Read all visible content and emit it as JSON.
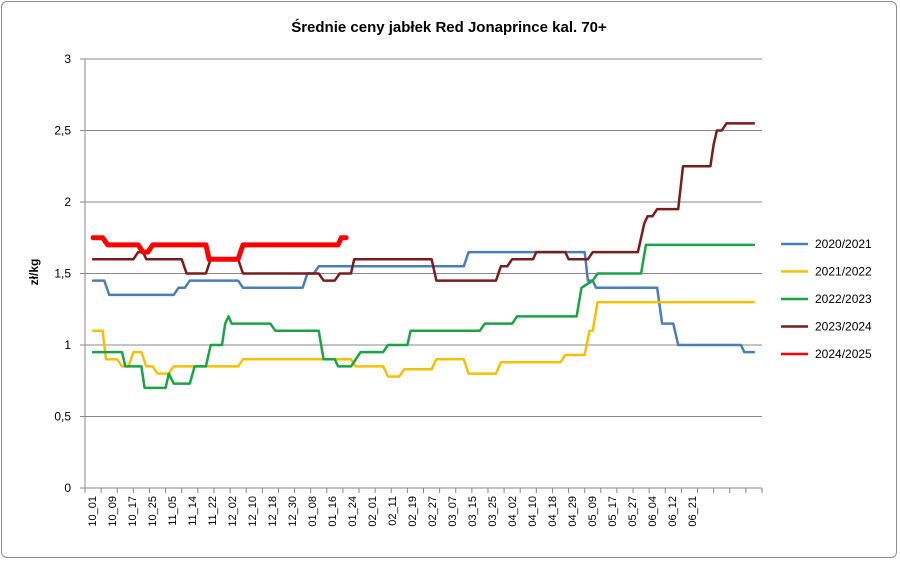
{
  "chart_data": {
    "type": "line",
    "title": "Średnie ceny jabłek Red Jonaprince kal. 70+",
    "xlabel": "",
    "ylabel": "zł/kg",
    "ylim": [
      0,
      3
    ],
    "yticks": [
      "0",
      "0,5",
      "1",
      "1,5",
      "2",
      "2,5",
      "3"
    ],
    "grid": "horizontal",
    "legend_position": "right",
    "x_tick_labels": [
      "10_01",
      "10_09",
      "10_17",
      "10_25",
      "11_05",
      "11_14",
      "11_22",
      "12_02",
      "12_10",
      "12_18",
      "12_30",
      "01_08",
      "01_16",
      "01_24",
      "02_01",
      "02_11",
      "02_19",
      "02_27",
      "03_07",
      "03_15",
      "03_25",
      "04_02",
      "04_10",
      "04_18",
      "04_29",
      "05_09",
      "05_17",
      "05_27",
      "06_04",
      "06_12",
      "06_21"
    ],
    "x_count": 42,
    "series": [
      {
        "name": "2020/2021",
        "color": "#4a7ebb",
        "width": 2.5,
        "points": [
          [
            0,
            1.45
          ],
          [
            0.7,
            1.45
          ],
          [
            1,
            1.35
          ],
          [
            5,
            1.35
          ],
          [
            5.3,
            1.4
          ],
          [
            5.7,
            1.4
          ],
          [
            6,
            1.45
          ],
          [
            9,
            1.45
          ],
          [
            9.3,
            1.4
          ],
          [
            13,
            1.4
          ],
          [
            13.3,
            1.5
          ],
          [
            13.7,
            1.5
          ],
          [
            14,
            1.55
          ],
          [
            23,
            1.55
          ],
          [
            23.3,
            1.65
          ],
          [
            30.5,
            1.65
          ],
          [
            30.7,
            1.45
          ],
          [
            31,
            1.45
          ],
          [
            31.2,
            1.4
          ],
          [
            35,
            1.4
          ],
          [
            35.3,
            1.15
          ],
          [
            36,
            1.15
          ],
          [
            36.3,
            1.0
          ],
          [
            40.2,
            1.0
          ],
          [
            40.4,
            0.95
          ],
          [
            41,
            0.95
          ]
        ]
      },
      {
        "name": "2021/2022",
        "color": "#f6c000",
        "width": 2.5,
        "points": [
          [
            0,
            1.1
          ],
          [
            0.6,
            1.1
          ],
          [
            0.8,
            0.9
          ],
          [
            1.5,
            0.9
          ],
          [
            1.8,
            0.85
          ],
          [
            2.2,
            0.85
          ],
          [
            2.5,
            0.95
          ],
          [
            3,
            0.95
          ],
          [
            3.3,
            0.85
          ],
          [
            3.7,
            0.85
          ],
          [
            4,
            0.8
          ],
          [
            4.7,
            0.8
          ],
          [
            5,
            0.85
          ],
          [
            9,
            0.85
          ],
          [
            9.3,
            0.9
          ],
          [
            16,
            0.9
          ],
          [
            16.3,
            0.85
          ],
          [
            18,
            0.85
          ],
          [
            18.3,
            0.78
          ],
          [
            19,
            0.78
          ],
          [
            19.3,
            0.83
          ],
          [
            21,
            0.83
          ],
          [
            21.3,
            0.9
          ],
          [
            23,
            0.9
          ],
          [
            23.3,
            0.8
          ],
          [
            25,
            0.8
          ],
          [
            25.3,
            0.88
          ],
          [
            29,
            0.88
          ],
          [
            29.3,
            0.93
          ],
          [
            30.5,
            0.93
          ],
          [
            30.8,
            1.1
          ],
          [
            31,
            1.1
          ],
          [
            31.3,
            1.3
          ],
          [
            41,
            1.3
          ]
        ]
      },
      {
        "name": "2022/2023",
        "color": "#1aa345",
        "width": 2.5,
        "points": [
          [
            0,
            0.95
          ],
          [
            1.8,
            0.95
          ],
          [
            2,
            0.85
          ],
          [
            3,
            0.85
          ],
          [
            3.2,
            0.7
          ],
          [
            4.5,
            0.7
          ],
          [
            4.7,
            0.8
          ],
          [
            5,
            0.73
          ],
          [
            6,
            0.73
          ],
          [
            6.3,
            0.85
          ],
          [
            7,
            0.85
          ],
          [
            7.3,
            1.0
          ],
          [
            8,
            1.0
          ],
          [
            8.2,
            1.15
          ],
          [
            8.4,
            1.2
          ],
          [
            8.6,
            1.15
          ],
          [
            11,
            1.15
          ],
          [
            11.3,
            1.1
          ],
          [
            14,
            1.1
          ],
          [
            14.3,
            0.9
          ],
          [
            15,
            0.9
          ],
          [
            15.2,
            0.85
          ],
          [
            16,
            0.85
          ],
          [
            16.3,
            0.9
          ],
          [
            16.6,
            0.95
          ],
          [
            18,
            0.95
          ],
          [
            18.3,
            1.0
          ],
          [
            19.5,
            1.0
          ],
          [
            19.7,
            1.1
          ],
          [
            24,
            1.1
          ],
          [
            24.3,
            1.15
          ],
          [
            26,
            1.15
          ],
          [
            26.3,
            1.2
          ],
          [
            30,
            1.2
          ],
          [
            30.3,
            1.4
          ],
          [
            31,
            1.45
          ],
          [
            31.3,
            1.5
          ],
          [
            34,
            1.5
          ],
          [
            34.3,
            1.7
          ],
          [
            41,
            1.7
          ]
        ]
      },
      {
        "name": "2023/2024",
        "color": "#7b1c1c",
        "width": 2.5,
        "points": [
          [
            0,
            1.6
          ],
          [
            2.5,
            1.6
          ],
          [
            2.8,
            1.65
          ],
          [
            3.1,
            1.65
          ],
          [
            3.3,
            1.6
          ],
          [
            5.5,
            1.6
          ],
          [
            5.8,
            1.5
          ],
          [
            7,
            1.5
          ],
          [
            7.3,
            1.6
          ],
          [
            9,
            1.6
          ],
          [
            9.3,
            1.5
          ],
          [
            14,
            1.5
          ],
          [
            14.3,
            1.45
          ],
          [
            15,
            1.45
          ],
          [
            15.3,
            1.5
          ],
          [
            16,
            1.5
          ],
          [
            16.2,
            1.6
          ],
          [
            21,
            1.6
          ],
          [
            21.3,
            1.45
          ],
          [
            25,
            1.45
          ],
          [
            25.3,
            1.55
          ],
          [
            25.7,
            1.55
          ],
          [
            26,
            1.6
          ],
          [
            27.3,
            1.6
          ],
          [
            27.5,
            1.65
          ],
          [
            29.3,
            1.65
          ],
          [
            29.5,
            1.6
          ],
          [
            30.7,
            1.6
          ],
          [
            31,
            1.65
          ],
          [
            33.8,
            1.65
          ],
          [
            34,
            1.75
          ],
          [
            34.2,
            1.85
          ],
          [
            34.4,
            1.9
          ],
          [
            34.7,
            1.9
          ],
          [
            35,
            1.95
          ],
          [
            36.3,
            1.95
          ],
          [
            36.6,
            2.25
          ],
          [
            38.3,
            2.25
          ],
          [
            38.5,
            2.4
          ],
          [
            38.7,
            2.5
          ],
          [
            39,
            2.5
          ],
          [
            39.3,
            2.55
          ],
          [
            41,
            2.55
          ]
        ]
      },
      {
        "name": "2024/2025",
        "color": "#ff0000",
        "width": 5,
        "points": [
          [
            0,
            1.75
          ],
          [
            0.6,
            1.75
          ],
          [
            0.9,
            1.7
          ],
          [
            2.8,
            1.7
          ],
          [
            3.1,
            1.65
          ],
          [
            3.4,
            1.65
          ],
          [
            3.7,
            1.7
          ],
          [
            7,
            1.7
          ],
          [
            7.2,
            1.6
          ],
          [
            9,
            1.6
          ],
          [
            9.3,
            1.7
          ],
          [
            15.2,
            1.7
          ],
          [
            15.4,
            1.75
          ],
          [
            15.7,
            1.75
          ]
        ]
      }
    ]
  }
}
